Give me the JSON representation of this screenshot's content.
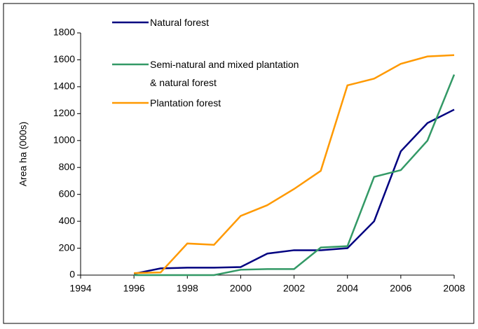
{
  "chart_data": {
    "type": "line",
    "y_label": "Area ha (000s)",
    "x": [
      1996,
      1997,
      1998,
      1999,
      2000,
      2001,
      2002,
      2003,
      2004,
      2005,
      2006,
      2007,
      2008
    ],
    "series": [
      {
        "name": "Natural forest",
        "color": "#000080",
        "values": [
          10,
          50,
          55,
          55,
          60,
          160,
          185,
          185,
          200,
          400,
          920,
          1130,
          1230
        ]
      },
      {
        "name": "Semi-natural and mixed plantation & natural forest",
        "color": "#339966",
        "values": [
          0,
          0,
          0,
          0,
          40,
          45,
          45,
          205,
          215,
          730,
          780,
          1000,
          1490
        ]
      },
      {
        "name": "Plantation forest",
        "color": "#ff9900",
        "values": [
          15,
          20,
          235,
          225,
          440,
          520,
          640,
          775,
          1410,
          1460,
          1570,
          1625,
          1635
        ]
      }
    ],
    "xlim": [
      1994,
      2008
    ],
    "xticks": [
      1994,
      1996,
      1998,
      2000,
      2002,
      2004,
      2006,
      2008
    ],
    "ylim": [
      0,
      1800
    ],
    "yticks": [
      0,
      200,
      400,
      600,
      800,
      1000,
      1200,
      1400,
      1600,
      1800
    ],
    "grid": false,
    "legend": "top-left"
  }
}
